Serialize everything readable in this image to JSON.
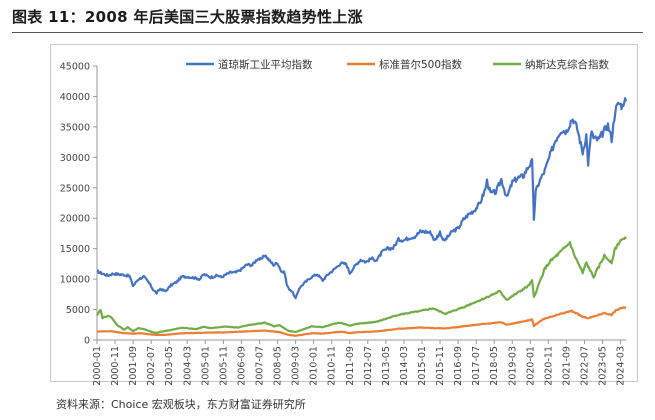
{
  "title": "图表 11：2008 年后美国三大股票指数趋势性上涨",
  "source": "资料来源：Choice 宏观板块，东方财富证券研究所",
  "chart_data": {
    "type": "line",
    "title": "",
    "xlabel": "",
    "ylabel": "",
    "ylim": [
      0,
      45000
    ],
    "yticks": [
      "0",
      "5000",
      "10000",
      "15000",
      "20000",
      "25000",
      "30000",
      "35000",
      "40000",
      "45000"
    ],
    "x_tick_labels": [
      "2000-01",
      "2000-11",
      "2001-09",
      "2002-07",
      "2003-05",
      "2004-03",
      "2005-01",
      "2005-11",
      "2006-09",
      "2007-07",
      "2008-05",
      "2009-03",
      "2010-01",
      "2010-11",
      "2011-09",
      "2012-07",
      "2013-05",
      "2014-03",
      "2015-01",
      "2015-11",
      "2016-09",
      "2017-07",
      "2018-05",
      "2019-03",
      "2020-01",
      "2020-11",
      "2021-09",
      "2022-07",
      "2023-05",
      "2024-03"
    ],
    "x_range": [
      "2000-01",
      "2024-06"
    ],
    "grid": false,
    "legend_position": "top",
    "series": [
      {
        "name": "道琼斯工业平均指数",
        "color": "#4472C4",
        "points": [
          [
            "2000-01",
            11300
          ],
          [
            "2000-04",
            10900
          ],
          [
            "2000-07",
            10600
          ],
          [
            "2000-10",
            10900
          ],
          [
            "2001-01",
            10800
          ],
          [
            "2001-04",
            10700
          ],
          [
            "2001-07",
            10500
          ],
          [
            "2001-09",
            8900
          ],
          [
            "2001-12",
            10000
          ],
          [
            "2002-03",
            10400
          ],
          [
            "2002-06",
            9300
          ],
          [
            "2002-08",
            8300
          ],
          [
            "2002-10",
            7700
          ],
          [
            "2002-12",
            8400
          ],
          [
            "2003-03",
            8000
          ],
          [
            "2003-06",
            9000
          ],
          [
            "2003-09",
            9500
          ],
          [
            "2003-12",
            10400
          ],
          [
            "2004-03",
            10400
          ],
          [
            "2004-07",
            10200
          ],
          [
            "2004-10",
            10000
          ],
          [
            "2004-12",
            10800
          ],
          [
            "2005-04",
            10300
          ],
          [
            "2005-08",
            10600
          ],
          [
            "2005-10",
            10300
          ],
          [
            "2005-12",
            10700
          ],
          [
            "2006-03",
            11100
          ],
          [
            "2006-06",
            11100
          ],
          [
            "2006-09",
            11600
          ],
          [
            "2006-12",
            12400
          ],
          [
            "2007-03",
            12300
          ],
          [
            "2007-06",
            13400
          ],
          [
            "2007-08",
            13200
          ],
          [
            "2007-10",
            14000
          ],
          [
            "2007-12",
            13200
          ],
          [
            "2008-03",
            12300
          ],
          [
            "2008-05",
            12700
          ],
          [
            "2008-07",
            11300
          ],
          [
            "2008-09",
            11000
          ],
          [
            "2008-10",
            9200
          ],
          [
            "2008-11",
            8500
          ],
          [
            "2009-01",
            8000
          ],
          [
            "2009-03",
            6800
          ],
          [
            "2009-05",
            8500
          ],
          [
            "2009-08",
            9400
          ],
          [
            "2009-12",
            10400
          ],
          [
            "2010-03",
            10800
          ],
          [
            "2010-06",
            9800
          ],
          [
            "2010-09",
            10800
          ],
          [
            "2010-12",
            11500
          ],
          [
            "2011-04",
            12600
          ],
          [
            "2011-07",
            12500
          ],
          [
            "2011-09",
            11000
          ],
          [
            "2011-12",
            12200
          ],
          [
            "2012-03",
            13200
          ],
          [
            "2012-06",
            12800
          ],
          [
            "2012-09",
            13400
          ],
          [
            "2012-12",
            13100
          ],
          [
            "2013-03",
            14500
          ],
          [
            "2013-06",
            15000
          ],
          [
            "2013-09",
            15100
          ],
          [
            "2013-12",
            16500
          ],
          [
            "2014-03",
            16400
          ],
          [
            "2014-06",
            16800
          ],
          [
            "2014-09",
            17000
          ],
          [
            "2014-12",
            17800
          ],
          [
            "2015-03",
            17800
          ],
          [
            "2015-06",
            17600
          ],
          [
            "2015-08",
            16300
          ],
          [
            "2015-11",
            17700
          ],
          [
            "2016-01",
            16300
          ],
          [
            "2016-02",
            16500
          ],
          [
            "2016-06",
            17900
          ],
          [
            "2016-09",
            18300
          ],
          [
            "2016-12",
            19800
          ],
          [
            "2017-03",
            20700
          ],
          [
            "2017-06",
            21300
          ],
          [
            "2017-09",
            22400
          ],
          [
            "2017-12",
            24700
          ],
          [
            "2018-01",
            26100
          ],
          [
            "2018-03",
            24100
          ],
          [
            "2018-06",
            24300
          ],
          [
            "2018-09",
            26400
          ],
          [
            "2018-12",
            23300
          ],
          [
            "2019-03",
            25900
          ],
          [
            "2019-06",
            26600
          ],
          [
            "2019-09",
            26900
          ],
          [
            "2019-12",
            28500
          ],
          [
            "2020-02",
            29300
          ],
          [
            "2020-03",
            19900
          ],
          [
            "2020-04",
            24300
          ],
          [
            "2020-06",
            26000
          ],
          [
            "2020-09",
            27800
          ],
          [
            "2020-12",
            30400
          ],
          [
            "2021-03",
            32900
          ],
          [
            "2021-06",
            34500
          ],
          [
            "2021-09",
            34300
          ],
          [
            "2021-12",
            36300
          ],
          [
            "2022-01",
            36200
          ],
          [
            "2022-03",
            34700
          ],
          [
            "2022-06",
            30800
          ],
          [
            "2022-08",
            33700
          ],
          [
            "2022-09",
            29000
          ],
          [
            "2022-11",
            34500
          ],
          [
            "2022-12",
            33100
          ],
          [
            "2023-03",
            32900
          ],
          [
            "2023-06",
            34400
          ],
          [
            "2023-08",
            35300
          ],
          [
            "2023-10",
            33000
          ],
          [
            "2023-12",
            37700
          ],
          [
            "2024-02",
            38900
          ],
          [
            "2024-04",
            38400
          ],
          [
            "2024-05",
            39500
          ],
          [
            "2024-06",
            39200
          ]
        ]
      },
      {
        "name": "标准普尔500指数",
        "color": "#ED7D31",
        "points": [
          [
            "2000-01",
            1400
          ],
          [
            "2000-09",
            1450
          ],
          [
            "2001-03",
            1150
          ],
          [
            "2001-09",
            1040
          ],
          [
            "2002-01",
            1130
          ],
          [
            "2002-07",
            900
          ],
          [
            "2002-10",
            820
          ],
          [
            "2003-03",
            850
          ],
          [
            "2003-12",
            1100
          ],
          [
            "2004-12",
            1200
          ],
          [
            "2005-12",
            1250
          ],
          [
            "2006-12",
            1420
          ],
          [
            "2007-10",
            1550
          ],
          [
            "2008-06",
            1300
          ],
          [
            "2008-11",
            850
          ],
          [
            "2009-03",
            700
          ],
          [
            "2009-12",
            1110
          ],
          [
            "2010-06",
            1050
          ],
          [
            "2010-12",
            1250
          ],
          [
            "2011-05",
            1350
          ],
          [
            "2011-09",
            1130
          ],
          [
            "2011-12",
            1250
          ],
          [
            "2012-12",
            1420
          ],
          [
            "2013-12",
            1840
          ],
          [
            "2014-12",
            2050
          ],
          [
            "2015-08",
            1950
          ],
          [
            "2016-02",
            1900
          ],
          [
            "2016-12",
            2250
          ],
          [
            "2017-12",
            2670
          ],
          [
            "2018-09",
            2900
          ],
          [
            "2018-12",
            2500
          ],
          [
            "2019-12",
            3230
          ],
          [
            "2020-02",
            3380
          ],
          [
            "2020-03",
            2300
          ],
          [
            "2020-08",
            3400
          ],
          [
            "2020-12",
            3750
          ],
          [
            "2021-06",
            4300
          ],
          [
            "2021-12",
            4770
          ],
          [
            "2022-06",
            3800
          ],
          [
            "2022-09",
            3600
          ],
          [
            "2022-12",
            3840
          ],
          [
            "2023-06",
            4450
          ],
          [
            "2023-10",
            4120
          ],
          [
            "2023-12",
            4770
          ],
          [
            "2024-03",
            5250
          ],
          [
            "2024-06",
            5300
          ]
        ]
      },
      {
        "name": "纳斯达克综合指数",
        "color": "#70AD47",
        "points": [
          [
            "2000-01",
            4000
          ],
          [
            "2000-03",
            5000
          ],
          [
            "2000-04",
            3600
          ],
          [
            "2000-07",
            4000
          ],
          [
            "2000-09",
            3700
          ],
          [
            "2000-12",
            2500
          ],
          [
            "2001-04",
            1700
          ],
          [
            "2001-06",
            2100
          ],
          [
            "2001-09",
            1450
          ],
          [
            "2001-12",
            1950
          ],
          [
            "2002-04",
            1700
          ],
          [
            "2002-07",
            1350
          ],
          [
            "2002-10",
            1150
          ],
          [
            "2002-12",
            1350
          ],
          [
            "2003-06",
            1650
          ],
          [
            "2003-12",
            2000
          ],
          [
            "2004-08",
            1800
          ],
          [
            "2004-12",
            2150
          ],
          [
            "2005-04",
            1950
          ],
          [
            "2005-12",
            2200
          ],
          [
            "2006-07",
            2050
          ],
          [
            "2006-12",
            2400
          ],
          [
            "2007-10",
            2850
          ],
          [
            "2008-03",
            2250
          ],
          [
            "2008-06",
            2450
          ],
          [
            "2008-11",
            1500
          ],
          [
            "2009-03",
            1300
          ],
          [
            "2009-12",
            2250
          ],
          [
            "2010-06",
            2100
          ],
          [
            "2010-12",
            2650
          ],
          [
            "2011-04",
            2850
          ],
          [
            "2011-09",
            2350
          ],
          [
            "2011-12",
            2600
          ],
          [
            "2012-12",
            3000
          ],
          [
            "2013-12",
            4150
          ],
          [
            "2014-12",
            4750
          ],
          [
            "2015-07",
            5200
          ],
          [
            "2016-02",
            4300
          ],
          [
            "2016-12",
            5400
          ],
          [
            "2017-12",
            6900
          ],
          [
            "2018-08",
            8000
          ],
          [
            "2018-12",
            6600
          ],
          [
            "2019-12",
            8900
          ],
          [
            "2020-02",
            9700
          ],
          [
            "2020-03",
            7000
          ],
          [
            "2020-09",
            11700
          ],
          [
            "2020-12",
            12900
          ],
          [
            "2021-06",
            14500
          ],
          [
            "2021-11",
            16000
          ],
          [
            "2022-01",
            14200
          ],
          [
            "2022-06",
            11000
          ],
          [
            "2022-08",
            12700
          ],
          [
            "2022-12",
            10300
          ],
          [
            "2023-06",
            13800
          ],
          [
            "2023-10",
            12800
          ],
          [
            "2023-12",
            15000
          ],
          [
            "2024-03",
            16400
          ],
          [
            "2024-06",
            16600
          ]
        ]
      }
    ]
  }
}
